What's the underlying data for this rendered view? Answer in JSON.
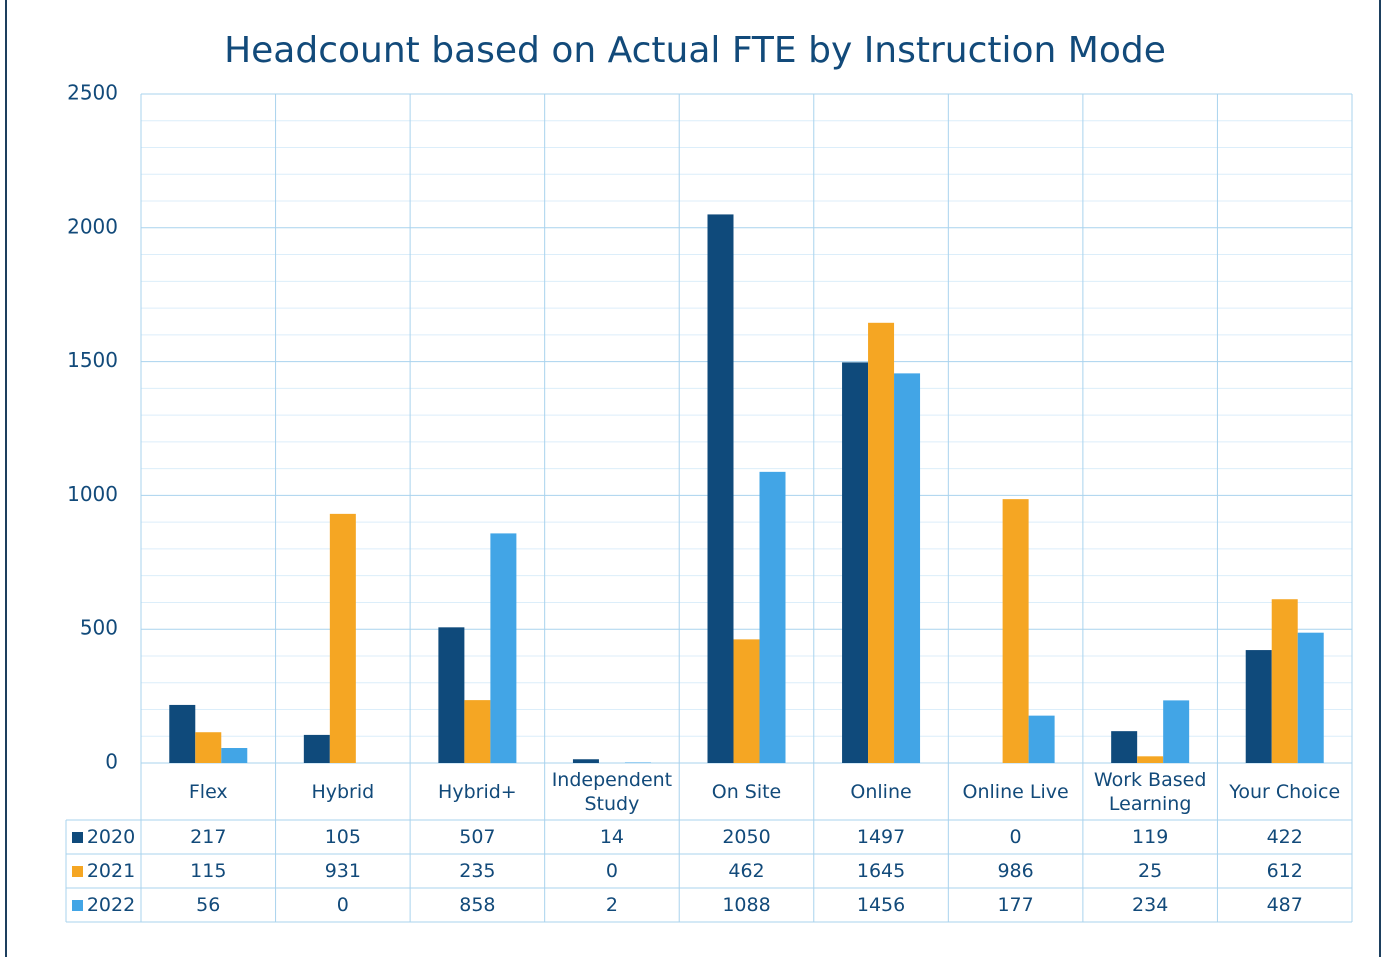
{
  "chart_data": {
    "type": "bar",
    "title": "Headcount based on Actual FTE by Instruction Mode",
    "categories": [
      "Flex",
      "Hybrid",
      "Hybrid+",
      "Independent Study",
      "On Site",
      "Online",
      "Online Live",
      "Work Based Learning",
      "Your Choice"
    ],
    "series": [
      {
        "name": "2020",
        "color": "#0f4a7b",
        "values": [
          217,
          105,
          507,
          14,
          2050,
          1497,
          0,
          119,
          422
        ]
      },
      {
        "name": "2021",
        "color": "#f5a623",
        "values": [
          115,
          931,
          235,
          0,
          462,
          1645,
          986,
          25,
          612
        ]
      },
      {
        "name": "2022",
        "color": "#42a5e6",
        "values": [
          56,
          0,
          858,
          2,
          1088,
          1456,
          177,
          234,
          487
        ]
      }
    ],
    "ylim": [
      0,
      2500
    ],
    "yticks": [
      0,
      500,
      1000,
      1500,
      2000,
      2500
    ],
    "grid": true
  }
}
